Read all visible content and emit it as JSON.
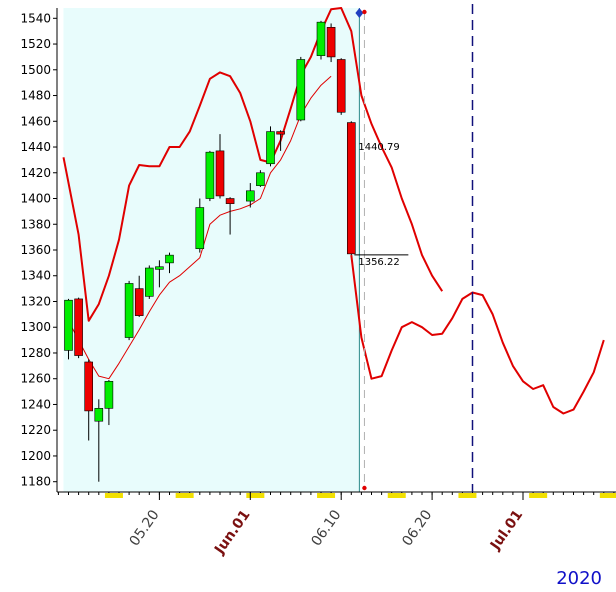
{
  "chart_data": {
    "type": "candlestick",
    "title": "",
    "ylim": [
      1172,
      1548
    ],
    "y_ticks": [
      1180,
      1200,
      1220,
      1240,
      1260,
      1280,
      1300,
      1320,
      1340,
      1360,
      1380,
      1400,
      1420,
      1440,
      1460,
      1480,
      1500,
      1520,
      1540
    ],
    "x_tick_labels": [
      {
        "text": "05.20",
        "index": 9,
        "color": "#404040"
      },
      {
        "text": "Jun.01",
        "index": 18,
        "color": "#7a1010"
      },
      {
        "text": "06.10",
        "index": 27,
        "color": "#404040"
      },
      {
        "text": "06.20",
        "index": 36,
        "color": "#404040"
      },
      {
        "text": "Jul.01",
        "index": 45,
        "color": "#7a1010"
      }
    ],
    "year_label": "2020",
    "candles": [
      {
        "i": 0,
        "o": 1282,
        "h": 1322,
        "l": 1275,
        "c": 1321
      },
      {
        "i": 1,
        "o": 1322,
        "h": 1323,
        "l": 1276,
        "c": 1278
      },
      {
        "i": 2,
        "o": 1273,
        "h": 1275,
        "l": 1212,
        "c": 1235
      },
      {
        "i": 3,
        "o": 1227,
        "h": 1244,
        "l": 1180,
        "c": 1237
      },
      {
        "i": 4,
        "o": 1237,
        "h": 1259,
        "l": 1224,
        "c": 1258
      },
      {
        "i": 6,
        "o": 1292,
        "h": 1336,
        "l": 1290,
        "c": 1334
      },
      {
        "i": 7,
        "o": 1330,
        "h": 1340,
        "l": 1308,
        "c": 1309
      },
      {
        "i": 8,
        "o": 1324,
        "h": 1348,
        "l": 1322,
        "c": 1346
      },
      {
        "i": 9,
        "o": 1345,
        "h": 1352,
        "l": 1331,
        "c": 1347
      },
      {
        "i": 10,
        "o": 1350,
        "h": 1358,
        "l": 1342,
        "c": 1356
      },
      {
        "i": 13,
        "o": 1361,
        "h": 1400,
        "l": 1358,
        "c": 1393
      },
      {
        "i": 14,
        "o": 1400,
        "h": 1437,
        "l": 1398,
        "c": 1436
      },
      {
        "i": 15,
        "o": 1437,
        "h": 1450,
        "l": 1400,
        "c": 1402
      },
      {
        "i": 16,
        "o": 1400,
        "h": 1401,
        "l": 1372,
        "c": 1396
      },
      {
        "i": 18,
        "o": 1398,
        "h": 1412,
        "l": 1393,
        "c": 1406
      },
      {
        "i": 19,
        "o": 1410,
        "h": 1422,
        "l": 1409,
        "c": 1420
      },
      {
        "i": 20,
        "o": 1427,
        "h": 1456,
        "l": 1425,
        "c": 1452
      },
      {
        "i": 21,
        "o": 1452,
        "h": 1453,
        "l": 1437,
        "c": 1450
      },
      {
        "i": 23,
        "o": 1461,
        "h": 1510,
        "l": 1460,
        "c": 1508
      },
      {
        "i": 25,
        "o": 1511,
        "h": 1538,
        "l": 1508,
        "c": 1537
      },
      {
        "i": 26,
        "o": 1533,
        "h": 1536,
        "l": 1506,
        "c": 1510
      },
      {
        "i": 27,
        "o": 1508,
        "h": 1509,
        "l": 1465,
        "c": 1467
      },
      {
        "i": 28,
        "o": 1459,
        "h": 1460,
        "l": 1356,
        "c": 1357
      }
    ],
    "series": [
      {
        "role": "upper-band",
        "color": "#e00000",
        "points": [
          [
            -0.5,
            1432
          ],
          [
            1,
            1372
          ],
          [
            2,
            1305
          ],
          [
            3,
            1318
          ],
          [
            4,
            1340
          ],
          [
            5,
            1368
          ],
          [
            6,
            1410
          ],
          [
            7,
            1426
          ],
          [
            8,
            1425
          ],
          [
            9,
            1425
          ],
          [
            10,
            1440
          ],
          [
            11,
            1440
          ],
          [
            12,
            1452
          ],
          [
            13,
            1472
          ],
          [
            14,
            1493
          ],
          [
            15,
            1498
          ],
          [
            16,
            1495
          ],
          [
            17,
            1482
          ],
          [
            18,
            1460
          ],
          [
            19,
            1430
          ],
          [
            20,
            1428
          ],
          [
            21,
            1445
          ],
          [
            22,
            1470
          ],
          [
            23,
            1496
          ],
          [
            24,
            1510
          ],
          [
            25,
            1530
          ],
          [
            26,
            1547
          ],
          [
            27,
            1548
          ],
          [
            28,
            1530
          ],
          [
            29,
            1480
          ],
          [
            30,
            1458
          ],
          [
            31,
            1440
          ],
          [
            32,
            1424
          ],
          [
            33,
            1400
          ],
          [
            34,
            1380
          ],
          [
            35,
            1356
          ],
          [
            36,
            1340
          ],
          [
            37,
            1328
          ]
        ]
      },
      {
        "role": "moving-average",
        "color": "#e00000",
        "points": [
          [
            0,
            1305
          ],
          [
            1,
            1290
          ],
          [
            2,
            1275
          ],
          [
            3,
            1262
          ],
          [
            4,
            1260
          ],
          [
            5,
            1272
          ],
          [
            6,
            1285
          ],
          [
            7,
            1298
          ],
          [
            8,
            1312
          ],
          [
            9,
            1325
          ],
          [
            10,
            1335
          ],
          [
            11,
            1340
          ],
          [
            12,
            1347
          ],
          [
            13,
            1354
          ],
          [
            14,
            1380
          ],
          [
            15,
            1387
          ],
          [
            16,
            1390
          ],
          [
            17,
            1392
          ],
          [
            18,
            1395
          ],
          [
            19,
            1400
          ],
          [
            20,
            1420
          ],
          [
            21,
            1430
          ],
          [
            22,
            1445
          ],
          [
            23,
            1465
          ],
          [
            24,
            1478
          ],
          [
            25,
            1488
          ],
          [
            26,
            1495
          ]
        ]
      },
      {
        "role": "projection",
        "color": "#e00000",
        "points": [
          [
            28,
            1356
          ],
          [
            29,
            1292
          ],
          [
            30,
            1260
          ],
          [
            31,
            1262
          ],
          [
            32,
            1282
          ],
          [
            33,
            1300
          ],
          [
            34,
            1304
          ],
          [
            35,
            1300
          ],
          [
            36,
            1294
          ],
          [
            37,
            1295
          ],
          [
            38,
            1307
          ],
          [
            39,
            1322
          ],
          [
            40,
            1327
          ],
          [
            41,
            1325
          ],
          [
            42,
            1310
          ],
          [
            43,
            1288
          ],
          [
            44,
            1270
          ],
          [
            45,
            1258
          ],
          [
            46,
            1252
          ],
          [
            47,
            1255
          ],
          [
            48,
            1238
          ],
          [
            49,
            1233
          ],
          [
            50,
            1236
          ],
          [
            51,
            1250
          ],
          [
            52,
            1265
          ],
          [
            53,
            1290
          ]
        ]
      }
    ],
    "annotations": [
      {
        "text": "1440.79",
        "index": 28.5,
        "y": 1440.79
      },
      {
        "text": "1356.22",
        "index": 28.5,
        "y": 1356.22
      }
    ],
    "forecast_start_index": 29.3,
    "vline_index": 40,
    "highlight_range": [
      -0.5,
      28.8
    ]
  }
}
